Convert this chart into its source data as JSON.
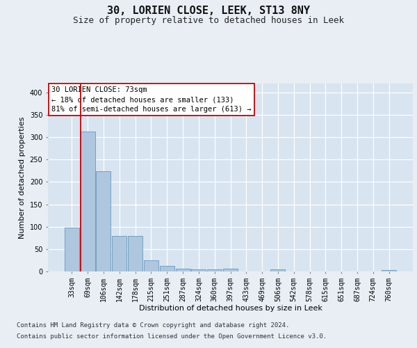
{
  "title": "30, LORIEN CLOSE, LEEK, ST13 8NY",
  "subtitle": "Size of property relative to detached houses in Leek",
  "xlabel": "Distribution of detached houses by size in Leek",
  "ylabel": "Number of detached properties",
  "categories": [
    "33sqm",
    "69sqm",
    "106sqm",
    "142sqm",
    "178sqm",
    "215sqm",
    "251sqm",
    "287sqm",
    "324sqm",
    "360sqm",
    "397sqm",
    "433sqm",
    "469sqm",
    "506sqm",
    "542sqm",
    "578sqm",
    "615sqm",
    "651sqm",
    "687sqm",
    "724sqm",
    "760sqm"
  ],
  "values": [
    98,
    313,
    224,
    80,
    80,
    25,
    12,
    6,
    4,
    4,
    6,
    0,
    0,
    5,
    0,
    0,
    0,
    0,
    0,
    0,
    3
  ],
  "bar_color": "#aec6de",
  "bar_edge_color": "#6699bb",
  "vline_color": "#cc0000",
  "vline_x": 0.555,
  "annotation_text": "30 LORIEN CLOSE: 73sqm\n← 18% of detached houses are smaller (133)\n81% of semi-detached houses are larger (613) →",
  "annotation_box_facecolor": "#ffffff",
  "annotation_border_color": "#cc0000",
  "ylim": [
    0,
    420
  ],
  "yticks": [
    0,
    50,
    100,
    150,
    200,
    250,
    300,
    350,
    400
  ],
  "footnote_line1": "Contains HM Land Registry data © Crown copyright and database right 2024.",
  "footnote_line2": "Contains public sector information licensed under the Open Government Licence v3.0.",
  "bg_color": "#e8eef4",
  "plot_bg_color": "#d8e4f0",
  "grid_color": "#ffffff",
  "title_fontsize": 11,
  "subtitle_fontsize": 9,
  "ylabel_fontsize": 8,
  "xlabel_fontsize": 8,
  "tick_fontsize": 7,
  "annotation_fontsize": 7.5,
  "footnote_fontsize": 6.5
}
